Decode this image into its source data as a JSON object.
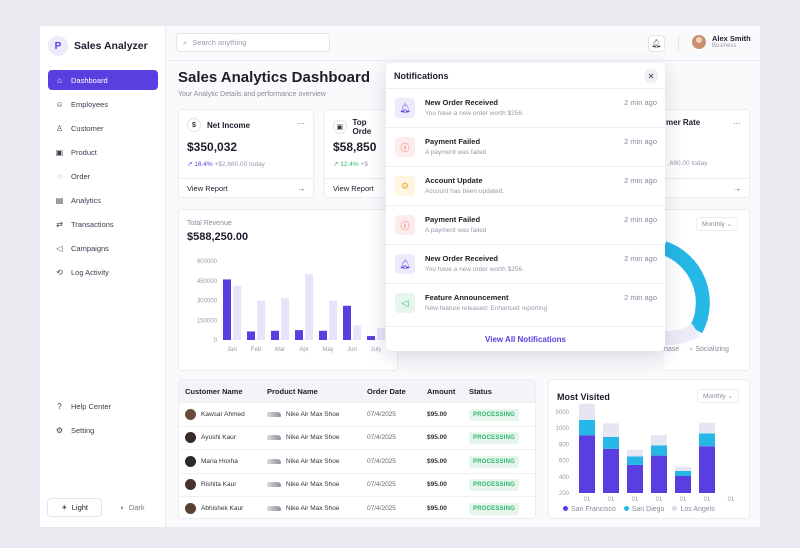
{
  "brand": {
    "name": "Sales Analyzer"
  },
  "sidebar": {
    "items": [
      {
        "label": "Dashboard",
        "icon": "home-icon"
      },
      {
        "label": "Employees",
        "icon": "users-icon"
      },
      {
        "label": "Customer",
        "icon": "user-icon"
      },
      {
        "label": "Product",
        "icon": "box-icon"
      },
      {
        "label": "Order",
        "icon": "order-icon"
      },
      {
        "label": "Analytics",
        "icon": "chart-icon"
      },
      {
        "label": "Transactions",
        "icon": "transaction-icon"
      },
      {
        "label": "Campaigns",
        "icon": "megaphone-icon"
      },
      {
        "label": "Log Activity",
        "icon": "log-icon"
      }
    ],
    "bottom": [
      {
        "label": "Help Center",
        "icon": "help-icon"
      },
      {
        "label": "Setting",
        "icon": "gear-icon"
      }
    ],
    "theme": {
      "light": "Light",
      "dark": "Dark"
    }
  },
  "header": {
    "search_placeholder": "Search anything",
    "user": {
      "name": "Alex Smith",
      "role": "Business"
    }
  },
  "page": {
    "title": "Sales Analytics Dashboard",
    "subtitle": "Your Analytic Details and performance overview"
  },
  "stats": [
    {
      "label": "Net Income",
      "value": "$350,032",
      "change": "16.4%",
      "note": "+$2,680.00 today",
      "link": "View Report"
    },
    {
      "label": "Top Orde",
      "value": "$58,850",
      "change": "12.4%",
      "note": "+$",
      "link": "View Report"
    },
    {
      "label": "mer Rate",
      "note": ",680.00 today"
    }
  ],
  "revenue": {
    "label": "Total Revenue",
    "value": "$588,250.00"
  },
  "revenue_chart": {
    "type": "bar",
    "categories": [
      "Jan",
      "Feb",
      "Mar",
      "Apr",
      "May",
      "Jun",
      "July"
    ],
    "series": [
      {
        "name": "",
        "values": [
          460000,
          65000,
          70000,
          75000,
          70000,
          260000,
          30000
        ]
      },
      {
        "name": "",
        "values": [
          410000,
          300000,
          320000,
          500000,
          300000,
          110000,
          90000
        ]
      }
    ],
    "yticks": [
      "600000",
      "450000",
      "300000",
      "150000",
      "0"
    ],
    "ylim": [
      0,
      600000
    ]
  },
  "campaign_card": {
    "dropdown": "Monthly",
    "legend": [
      "hase",
      "Socializing"
    ]
  },
  "table": {
    "headers": [
      "Customer Name",
      "Product Name",
      "Order Date",
      "Amount",
      "Status"
    ],
    "rows": [
      {
        "customer": "Kawsar Ahmed",
        "product": "Nike Air Max Shoe",
        "date": "07/4/2025",
        "amount": "$95.00",
        "status": "PROCESSING"
      },
      {
        "customer": "Ayushi Kaur",
        "product": "Nike Air Max Shoe",
        "date": "07/4/2025",
        "amount": "$95.00",
        "status": "PROCESSING"
      },
      {
        "customer": "Maria Hoxha",
        "product": "Nike Air Max Shoe",
        "date": "07/4/2025",
        "amount": "$95.00",
        "status": "PROCESSING"
      },
      {
        "customer": "Rishita Kaur",
        "product": "Nike Air Max Shoe",
        "date": "07/4/2025",
        "amount": "$95.00",
        "status": "PROCESSING"
      },
      {
        "customer": "Abhishek Kaur",
        "product": "Nike Air Max Shoe",
        "date": "07/4/2025",
        "amount": "$95.00",
        "status": "PROCESSING"
      }
    ]
  },
  "most_visited": {
    "title": "Most Visited",
    "dropdown": "Monthly",
    "legend": [
      {
        "name": "San Francisco",
        "color": "#5b3ee0"
      },
      {
        "name": "San Diego",
        "color": "#25b7e6"
      },
      {
        "name": "Los Angels",
        "color": "#e6e6f3"
      }
    ]
  },
  "most_visited_chart": {
    "type": "bar",
    "categories": [
      "01",
      "01",
      "01",
      "01",
      "01",
      "01",
      "01"
    ],
    "series": [
      {
        "name": "San Francisco",
        "values": [
          680,
          520,
          330,
          440,
          200,
          550,
          0
        ]
      },
      {
        "name": "San Diego",
        "values": [
          180,
          140,
          100,
          120,
          60,
          150,
          0
        ]
      },
      {
        "name": "Los Angels",
        "values": [
          190,
          160,
          80,
          120,
          50,
          130,
          0
        ]
      }
    ],
    "yticks": [
      "5000",
      "1000",
      "800",
      "600",
      "400",
      "200"
    ]
  },
  "notifications": {
    "title": "Notifications",
    "view_all": "View All Notifications",
    "items": [
      {
        "title": "New Order Received",
        "text": "You have a new order worth $256.",
        "time": "2 min ago",
        "icon": "bell-icon",
        "bg": "#ecebfb",
        "fg": "#5b3ee0"
      },
      {
        "title": "Payment Failed",
        "text": "A payment was failed",
        "time": "2 min ago",
        "icon": "alert-icon",
        "bg": "#fdecec",
        "fg": "#e0453e"
      },
      {
        "title": "Account Update",
        "text": "Account has been updated.",
        "time": "2 min ago",
        "icon": "gear-icon",
        "bg": "#fff5e0",
        "fg": "#e6a92a"
      },
      {
        "title": "Payment Failed",
        "text": "A payment was failed",
        "time": "2 min ago",
        "icon": "alert-icon",
        "bg": "#fdecec",
        "fg": "#e0453e"
      },
      {
        "title": "New Order Received",
        "text": "You have a new order worth $256.",
        "time": "2 min ago",
        "icon": "bell-icon",
        "bg": "#ecebfb",
        "fg": "#5b3ee0"
      },
      {
        "title": "Feature Announcement",
        "text": "New feature released: Enhanced reporting",
        "time": "2 min ago",
        "icon": "megaphone-icon",
        "bg": "#e7f6ec",
        "fg": "#2bb673"
      }
    ]
  }
}
